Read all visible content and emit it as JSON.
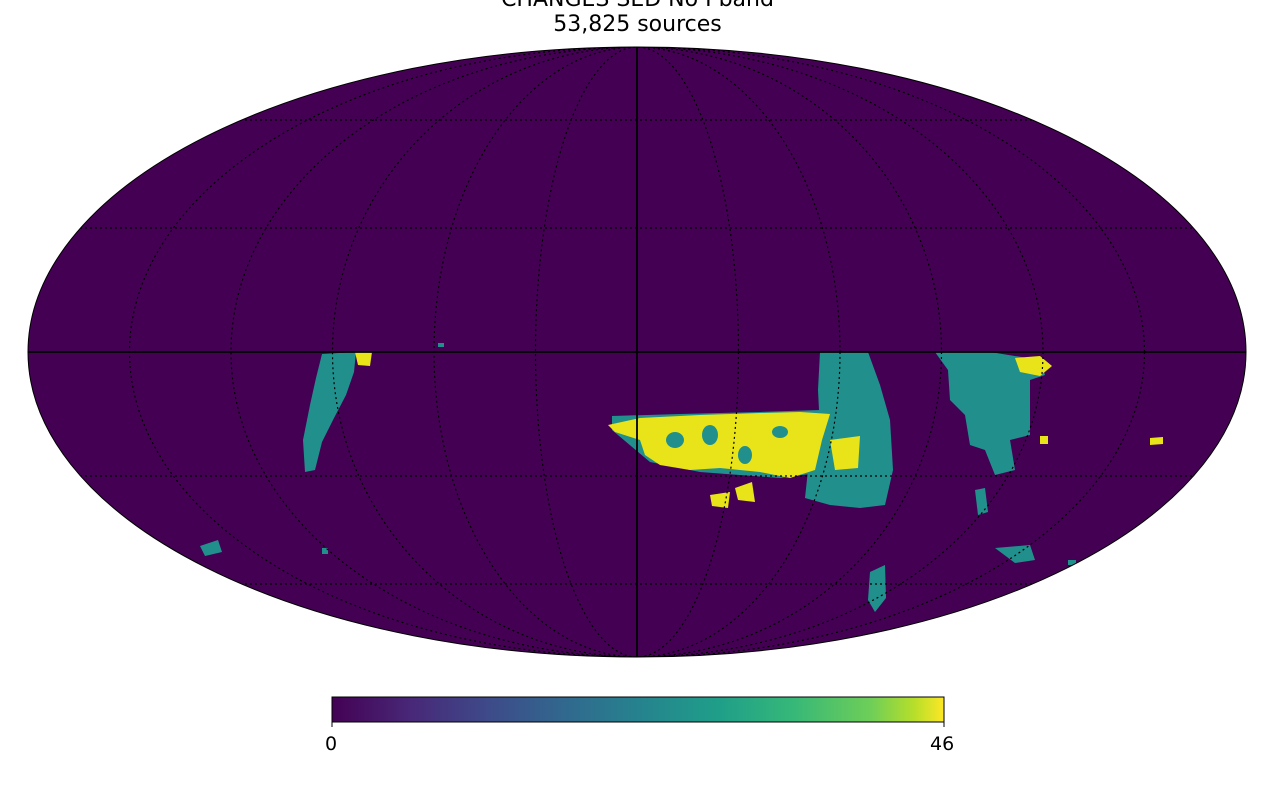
{
  "title_line1": "CHANGES SED No I band",
  "title_line2": "53,825 sources",
  "colorbar": {
    "min_label": "0",
    "max_label": "46",
    "colormap": "viridis"
  },
  "colors": {
    "background": "#440154",
    "teal": "#21908d",
    "yellow": "#e8e419"
  },
  "chart_data": {
    "type": "heatmap",
    "projection": "Mollweide (all-sky)",
    "title": "CHANGES SED No I band",
    "subtitle": "53,825 sources",
    "value_range": [
      0,
      46
    ],
    "graticule": "dotted",
    "legend": "colorbar-bottom"
  }
}
